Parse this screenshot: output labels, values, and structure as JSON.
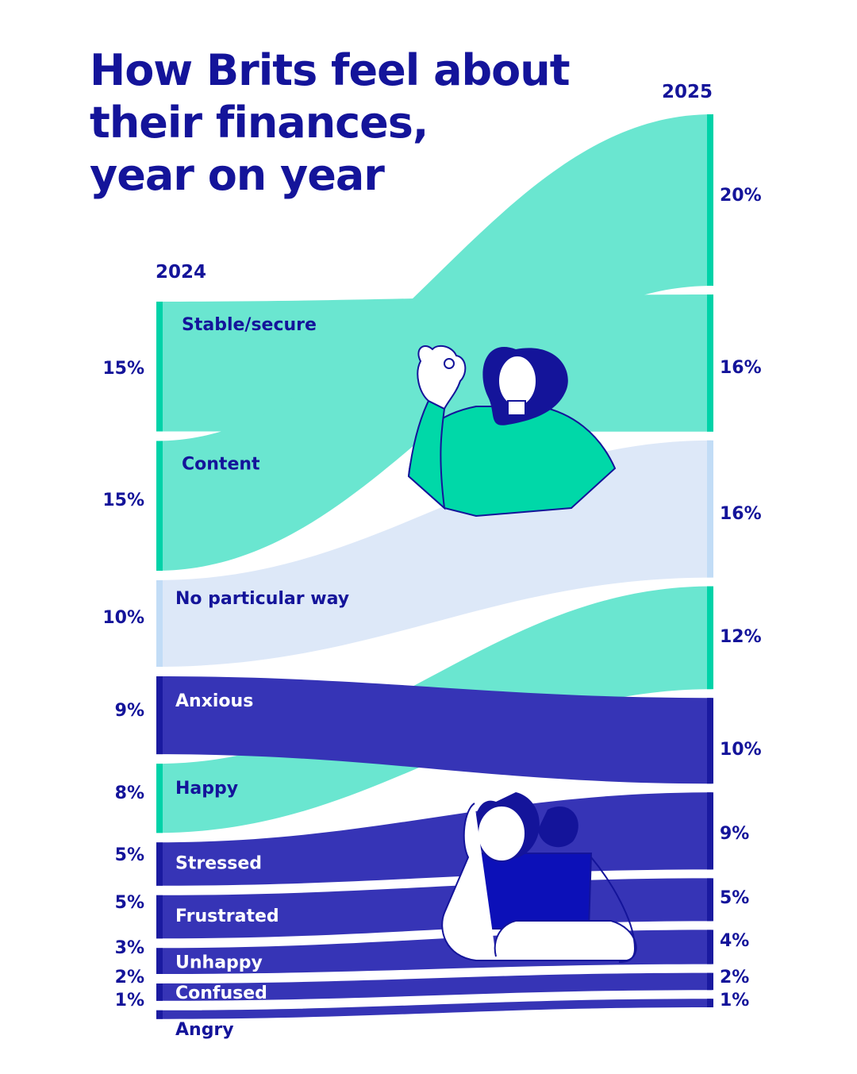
{
  "title_lines": [
    "How Brits feel about",
    "their finances,",
    "year on year"
  ],
  "chart_data": {
    "type": "sankey-slope",
    "title": "How Brits feel about their finances, year on year",
    "columns": [
      "2024",
      "2025"
    ],
    "unit": "%",
    "series": [
      {
        "name": "Stable/secure",
        "values": [
          15,
          16
        ],
        "label_2024": "15%",
        "label_2025": "16%",
        "color": "#6ae6d0",
        "edge": "#00d2a8"
      },
      {
        "name": "Content",
        "values": [
          15,
          20
        ],
        "label_2024": "15%",
        "label_2025": "20%",
        "color": "#6ae6d0",
        "edge": "#00d2a8"
      },
      {
        "name": "No particular way",
        "values": [
          10,
          16
        ],
        "label_2024": "10%",
        "label_2025": "16%",
        "color": "#dde8f8",
        "edge": "#c2dcf6"
      },
      {
        "name": "Anxious",
        "values": [
          9,
          10
        ],
        "label_2024": "9%",
        "label_2025": "10%",
        "color": "#3634b6",
        "edge": "#1a1aa0"
      },
      {
        "name": "Happy",
        "values": [
          8,
          12
        ],
        "label_2024": "8%",
        "label_2025": "12%",
        "color": "#6ae6d0",
        "edge": "#00d2a8"
      },
      {
        "name": "Stressed",
        "values": [
          5,
          9
        ],
        "label_2024": "5%",
        "label_2025": "9%",
        "color": "#3634b6",
        "edge": "#1a1aa0"
      },
      {
        "name": "Frustrated",
        "values": [
          5,
          5
        ],
        "label_2024": "5%",
        "label_2025": "5%",
        "color": "#3634b6",
        "edge": "#1a1aa0"
      },
      {
        "name": "Unhappy",
        "values": [
          3,
          4
        ],
        "label_2024": "3%",
        "label_2025": "4%",
        "color": "#3634b6",
        "edge": "#1a1aa0"
      },
      {
        "name": "Confused",
        "values": [
          2,
          2
        ],
        "label_2024": "2%",
        "label_2025": "2%",
        "color": "#3634b6",
        "edge": "#1a1aa0"
      },
      {
        "name": "Angry",
        "values": [
          1,
          1
        ],
        "label_2024": "1%",
        "label_2025": "1%",
        "color": "#3634b6",
        "edge": "#1a1aa0"
      }
    ]
  },
  "colors": {
    "title": "#14149a",
    "teal": "#6ae6d0",
    "teal_edge": "#00d2a8",
    "pale_blue": "#dde8f8",
    "indigo": "#3634b6",
    "indigo_edge": "#1a1aa0",
    "label_on_light": "#14149a",
    "label_on_dark": "#ffffff"
  },
  "illustrations": [
    "woman-ok-gesture-icon",
    "woman-head-in-hand-icon"
  ]
}
